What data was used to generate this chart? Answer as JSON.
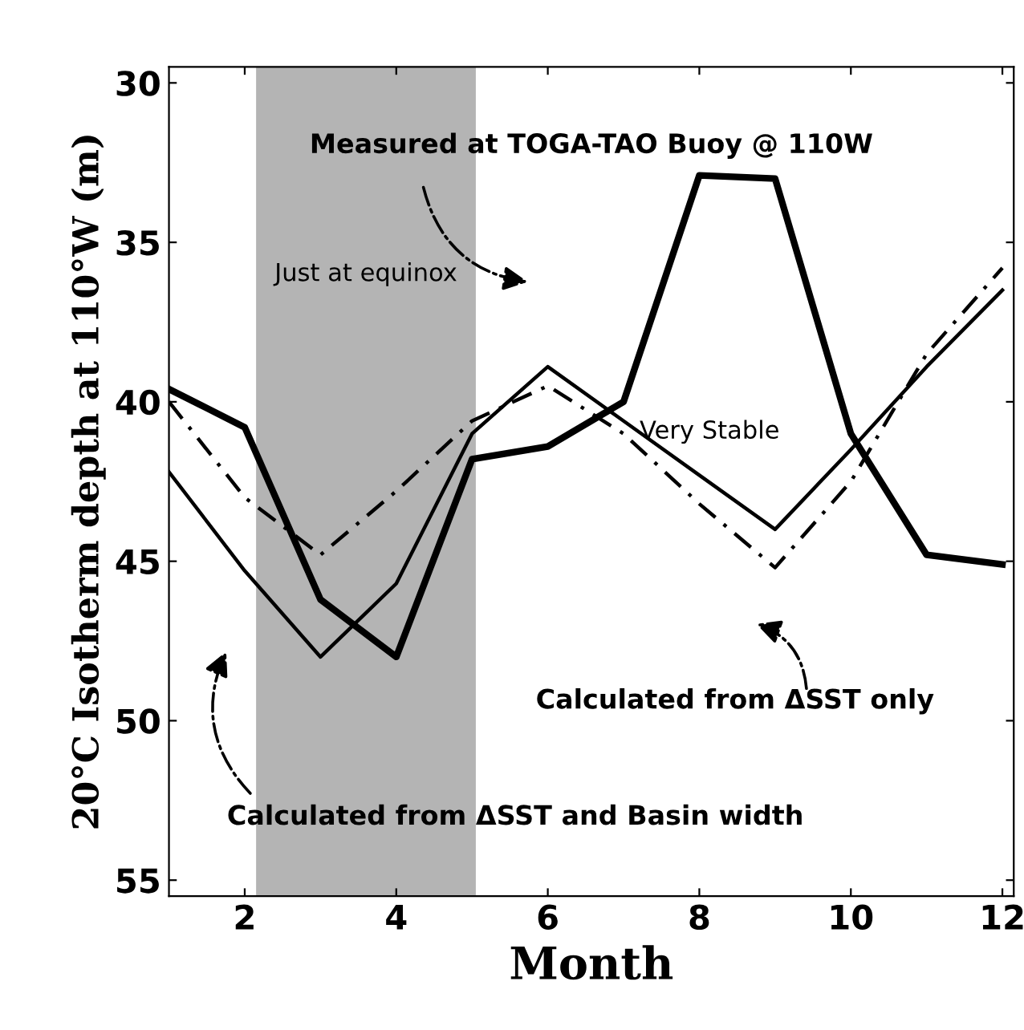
{
  "chart_data": {
    "type": "line",
    "xlabel": "Month",
    "ylabel": "20°C Isotherm depth at 110°W (m)",
    "x": [
      1,
      2,
      3,
      4,
      5,
      6,
      7,
      8,
      9,
      10,
      11,
      12
    ],
    "series": [
      {
        "color": "#000000",
        "line_style": "solid",
        "values": [
          39.6,
          40.8,
          46.2,
          48.0,
          41.8,
          41.4,
          40.0,
          32.9,
          33.0,
          41.0,
          44.8,
          45.1
        ]
      },
      {
        "color": "#000000",
        "line_style": "solid",
        "values": [
          42.2,
          45.3,
          48.0,
          45.7,
          41.0,
          38.9,
          40.6,
          42.3,
          44.0,
          41.5,
          38.9,
          36.5
        ]
      },
      {
        "color": "#000000",
        "line_style": "dashed",
        "values": [
          40.0,
          43.0,
          44.8,
          42.8,
          40.6,
          39.5,
          41.0,
          43.2,
          45.2,
          42.5,
          38.5,
          35.8
        ]
      }
    ],
    "xlim": [
      1,
      12.15
    ],
    "ylim": [
      55.5,
      29.5
    ],
    "xticks": [
      2,
      4,
      6,
      8,
      10,
      12
    ],
    "yticks": [
      30,
      35,
      40,
      45,
      50,
      55
    ],
    "bands": [
      {
        "axis": "x",
        "from": 2.15,
        "to": 5.05,
        "label": "Just at equinox",
        "color": "#b4b4b4"
      }
    ],
    "annotations": [
      "Measured at TOGA-TAO Buoy @ 110W",
      "Very Stable",
      "Calculated from ΔSST only",
      "Calculated from ΔSST and Basin width"
    ],
    "grid": false,
    "legend": false,
    "marker": "none"
  }
}
